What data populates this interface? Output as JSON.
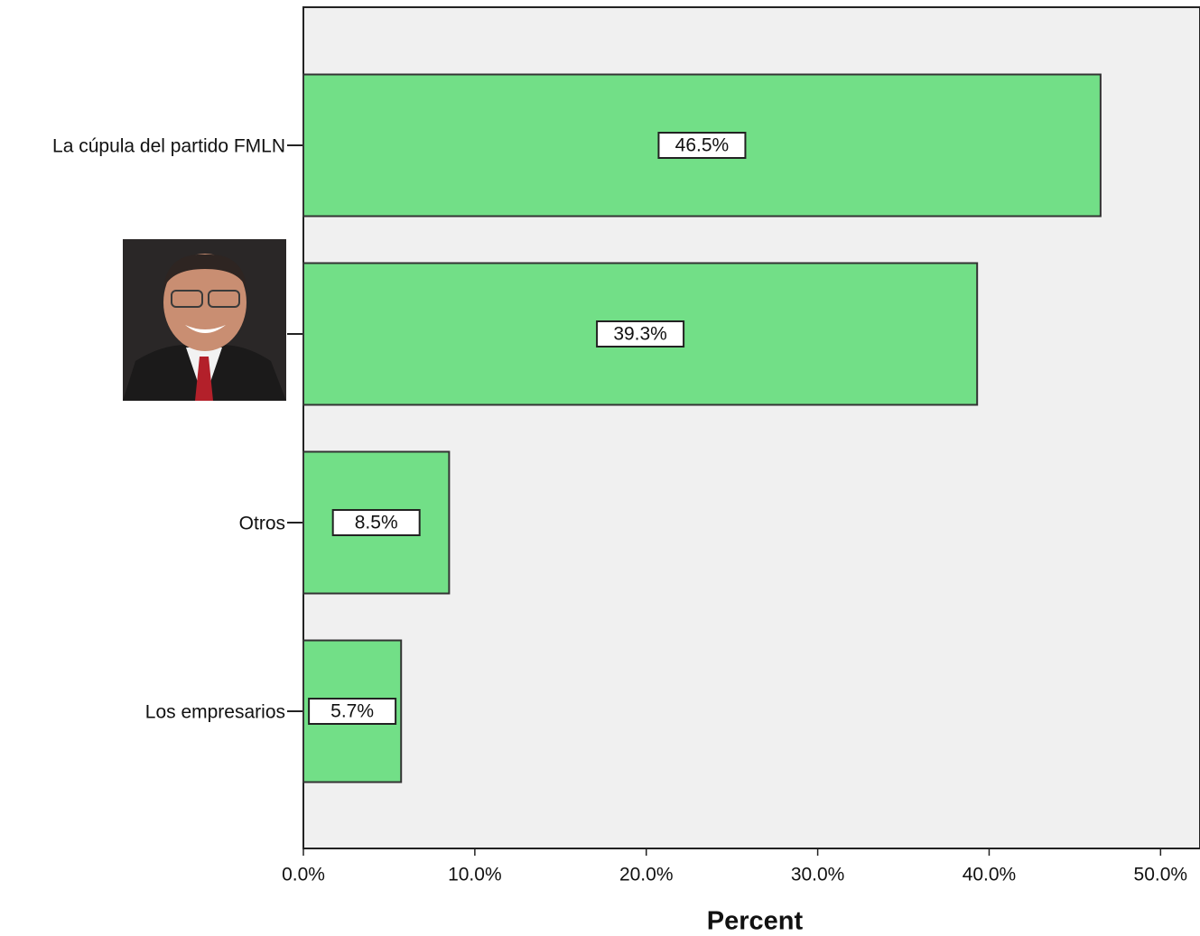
{
  "chart_data": {
    "type": "bar",
    "orientation": "horizontal",
    "categories": [
      "La cúpula del partido FMLN",
      null,
      "Otros",
      "Los empresarios"
    ],
    "values": [
      46.5,
      39.3,
      8.5,
      5.7
    ],
    "value_labels": [
      "46.5%",
      "39.3%",
      "8.5%",
      "5.7%"
    ],
    "color": "#72df87",
    "xlabel": "Percent",
    "xlim": [
      0,
      52.3
    ],
    "xticks": [
      {
        "value": 0,
        "label": "0.0%"
      },
      {
        "value": 10,
        "label": "10.0%"
      },
      {
        "value": 20,
        "label": "20.0%"
      },
      {
        "value": 30,
        "label": "30.0%"
      },
      {
        "value": 40,
        "label": "40.0%"
      },
      {
        "value": 50,
        "label": "50.0%"
      }
    ],
    "grid": false
  }
}
